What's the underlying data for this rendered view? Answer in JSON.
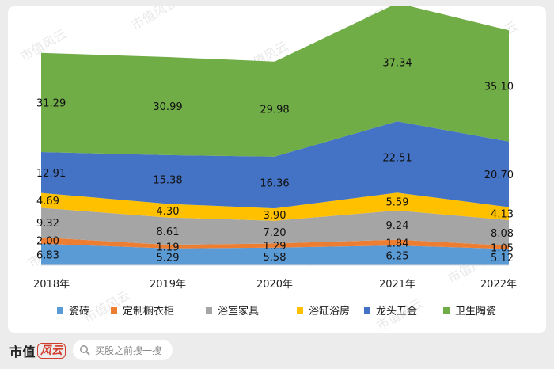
{
  "chart_data": {
    "type": "area",
    "stacked": true,
    "categories": [
      "2018年",
      "2019年",
      "2020年",
      "2021年",
      "2022年"
    ],
    "series": [
      {
        "name": "瓷砖",
        "color": "#5b9bd5",
        "values": [
          6.83,
          5.29,
          5.58,
          6.25,
          5.12
        ]
      },
      {
        "name": "定制橱衣柜",
        "color": "#ed7d31",
        "values": [
          2.0,
          1.19,
          1.29,
          1.84,
          1.05
        ]
      },
      {
        "name": "浴室家具",
        "color": "#a5a5a5",
        "values": [
          9.32,
          8.61,
          7.2,
          9.24,
          8.08
        ]
      },
      {
        "name": "浴缸浴房",
        "color": "#ffc000",
        "values": [
          4.69,
          4.3,
          3.9,
          5.59,
          4.13
        ]
      },
      {
        "name": "龙头五金",
        "color": "#4472c4",
        "values": [
          12.91,
          15.38,
          16.36,
          22.51,
          20.7
        ]
      },
      {
        "name": "卫生陶瓷",
        "color": "#70ad47",
        "values": [
          31.29,
          30.99,
          29.98,
          37.34,
          35.1
        ]
      }
    ],
    "value_labels": [
      [
        "6.83",
        "5.29",
        "5.58",
        "6.25",
        "5.12"
      ],
      [
        "2.00",
        "1.19",
        "1.29",
        "1.84",
        "1.05"
      ],
      [
        "9.32",
        "8.61",
        "7.20",
        "9.24",
        "8.08"
      ],
      [
        "4.69",
        "4.30",
        "3.90",
        "5.59",
        "4.13"
      ],
      [
        "12.91",
        "15.38",
        "16.36",
        "22.51",
        "20.70"
      ],
      [
        "31.29",
        "30.99",
        "29.98",
        "37.34",
        "35.10"
      ]
    ],
    "ylim": [
      0,
      80
    ],
    "grid": false,
    "legend_position": "bottom"
  },
  "watermark_text": "市值风云",
  "footer": {
    "brand_name": "市值",
    "brand_logo_text": "风云",
    "search_placeholder": "买股之前搜一搜",
    "search_icon": "search-icon"
  }
}
